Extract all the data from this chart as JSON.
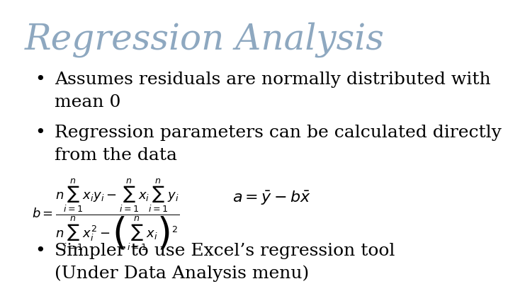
{
  "title": "Regression Analysis",
  "title_color": "#8EA8C0",
  "title_fontsize": 36,
  "background_color": "#ffffff",
  "bullet_color": "#000000",
  "bullet_fontsize": 18,
  "bullet1": "Assumes residuals are normally distributed with\nmean 0",
  "bullet2": "Regression parameters can be calculated directly\nfrom the data",
  "bullet3": "Simpler to use Excel’s regression tool\n(Under Data Analysis menu)",
  "formula_b": "$b = \\dfrac{n\\sum_{i=1}^{n} x_i y_i - \\sum_{i=1}^{n} x_i \\sum_{i=1}^{n} y_i}{n\\sum_{i=1}^{n} x_i^2 - \\left(\\sum_{i=1}^{n} x_i\\right)^2}$",
  "formula_a": "$a = \\bar{y} - b\\bar{x}$"
}
